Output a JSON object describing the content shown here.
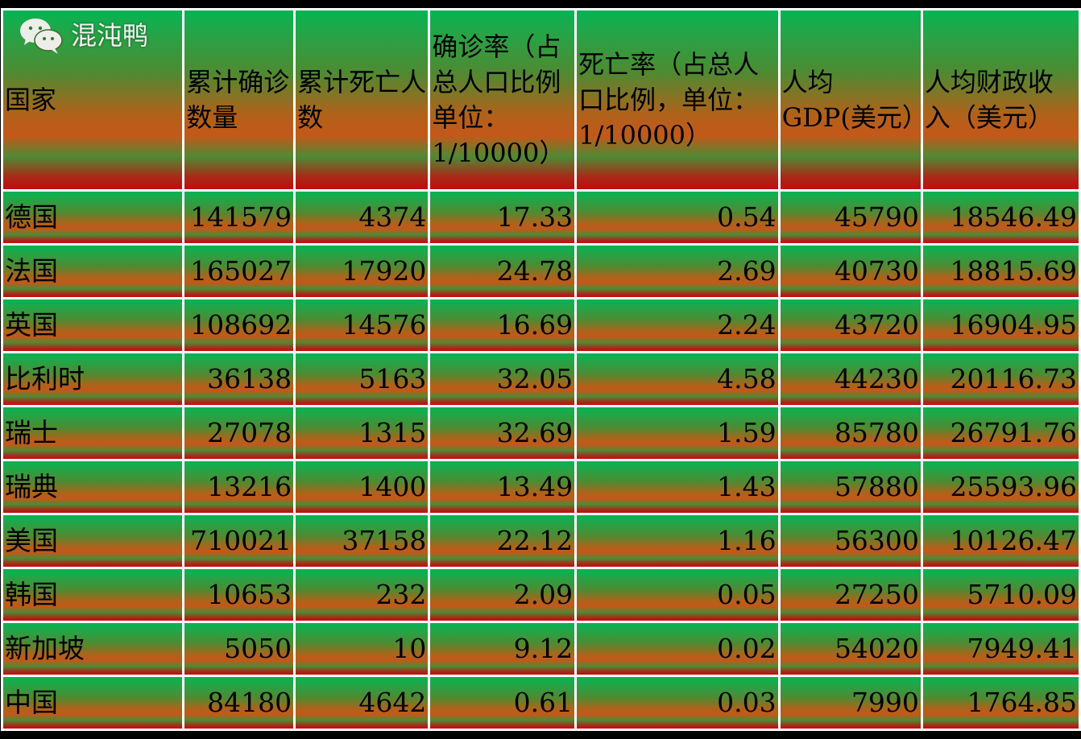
{
  "headers": [
    "国家",
    "累计确诊数量",
    "累计死亡人数",
    "确诊率（占总人口比例单位：1/10000）",
    "死亡率（占总人口比例，单位：1/10000）",
    "人均GDP(美元）",
    "人均财政收入（美元）"
  ],
  "rows": [
    [
      "德国",
      "141579",
      "4374",
      "17.33",
      "0.54",
      "45790",
      "18546.49"
    ],
    [
      "法国",
      "165027",
      "17920",
      "24.78",
      "2.69",
      "40730",
      "18815.69"
    ],
    [
      "英国",
      "108692",
      "14576",
      "16.69",
      "2.24",
      "43720",
      "16904.95"
    ],
    [
      "比利时",
      "36138",
      "5163",
      "32.05",
      "4.58",
      "44230",
      "20116.73"
    ],
    [
      "瑞士",
      "27078",
      "1315",
      "32.69",
      "1.59",
      "85780",
      "26791.76"
    ],
    [
      "瑞典",
      "13216",
      "1400",
      "13.49",
      "1.43",
      "57880",
      "25593.96"
    ],
    [
      "美国",
      "710021",
      "37158",
      "22.12",
      "1.16",
      "56300",
      "10126.47"
    ],
    [
      "韩国",
      "10653",
      "232",
      "2.09",
      "0.05",
      "27250",
      "5710.09"
    ],
    [
      "新加坡",
      "5050",
      "10",
      "9.12",
      "0.02",
      "54020",
      "7949.41"
    ],
    [
      "中国",
      "84180",
      "4642",
      "0.61",
      "0.03",
      "7990",
      "1764.85"
    ]
  ],
  "watermark": {
    "icon": "wechat-icon",
    "text": "混沌鸭"
  },
  "colors": {
    "top": "#05b454",
    "mid": "#c4581a",
    "bottom": "#c00c0c",
    "border": "#ffffff",
    "background": "#000000"
  }
}
